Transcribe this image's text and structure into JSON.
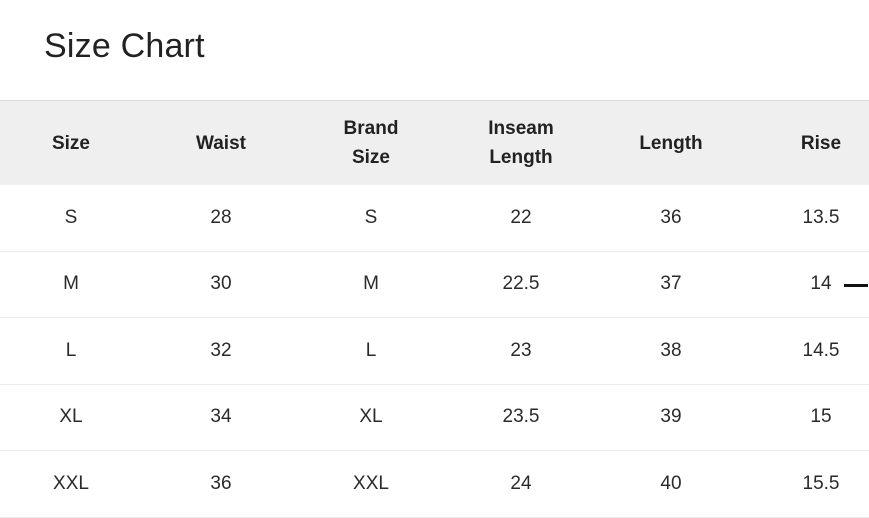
{
  "title": "Size Chart",
  "headers": [
    "Size",
    "Waist",
    "Brand Size",
    "Inseam Length",
    "Length",
    "Rise"
  ],
  "rows": [
    [
      "S",
      "28",
      "S",
      "22",
      "36",
      "13.5"
    ],
    [
      "M",
      "30",
      "M",
      "22.5",
      "37",
      "14"
    ],
    [
      "L",
      "32",
      "L",
      "23",
      "38",
      "14.5"
    ],
    [
      "XL",
      "34",
      "XL",
      "23.5",
      "39",
      "15"
    ],
    [
      "XXL",
      "36",
      "XXL",
      "24",
      "40",
      "15.5"
    ]
  ]
}
